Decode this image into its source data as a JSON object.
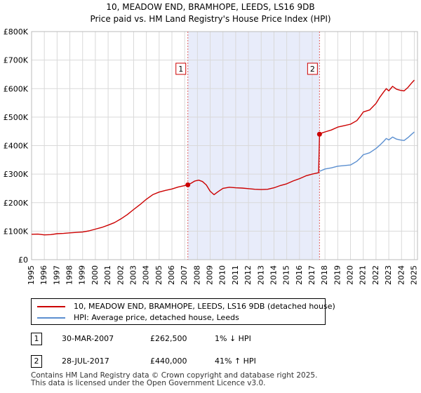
{
  "chart_data": {
    "type": "line",
    "title": "10, MEADOW END, BRAMHOPE, LEEDS, LS16 9DB",
    "subtitle": "Price paid vs. HM Land Registry's House Price Index (HPI)",
    "xlim": [
      1995,
      2025.25
    ],
    "ylim": [
      0,
      800000
    ],
    "x_ticks": [
      1995,
      1996,
      1997,
      1998,
      1999,
      2000,
      2001,
      2002,
      2003,
      2004,
      2005,
      2006,
      2007,
      2008,
      2009,
      2010,
      2011,
      2012,
      2013,
      2014,
      2015,
      2016,
      2017,
      2018,
      2019,
      2020,
      2021,
      2022,
      2023,
      2024,
      2025
    ],
    "y_ticks": [
      {
        "value": 0,
        "label": "£0"
      },
      {
        "value": 100000,
        "label": "£100K"
      },
      {
        "value": 200000,
        "label": "£200K"
      },
      {
        "value": 300000,
        "label": "£300K"
      },
      {
        "value": 400000,
        "label": "£400K"
      },
      {
        "value": 500000,
        "label": "£500K"
      },
      {
        "value": 600000,
        "label": "£600K"
      },
      {
        "value": 700000,
        "label": "£700K"
      },
      {
        "value": 800000,
        "label": "£800K"
      }
    ],
    "shaded_range": [
      2007.25,
      2017.57
    ],
    "series": [
      {
        "name": "10, MEADOW END, BRAMHOPE, LEEDS, LS16 9DB (detached house)",
        "color": "#cc0000",
        "points": [
          [
            1995.0,
            89000
          ],
          [
            1995.5,
            89500
          ],
          [
            1996.0,
            87000
          ],
          [
            1996.5,
            88000
          ],
          [
            1997.0,
            91000
          ],
          [
            1997.5,
            92000
          ],
          [
            1998.0,
            94000
          ],
          [
            1998.5,
            95500
          ],
          [
            1999.0,
            97000
          ],
          [
            1999.5,
            101000
          ],
          [
            2000.0,
            107000
          ],
          [
            2000.5,
            113000
          ],
          [
            2001.0,
            121000
          ],
          [
            2001.5,
            130000
          ],
          [
            2002.0,
            143000
          ],
          [
            2002.5,
            158000
          ],
          [
            2003.0,
            176000
          ],
          [
            2003.5,
            193000
          ],
          [
            2004.0,
            212000
          ],
          [
            2004.5,
            228000
          ],
          [
            2005.0,
            237000
          ],
          [
            2005.5,
            243000
          ],
          [
            2006.0,
            248000
          ],
          [
            2006.5,
            255000
          ],
          [
            2007.0,
            260000
          ],
          [
            2007.25,
            262500
          ],
          [
            2007.5,
            268000
          ],
          [
            2007.8,
            276000
          ],
          [
            2008.1,
            279000
          ],
          [
            2008.4,
            274000
          ],
          [
            2008.7,
            262000
          ],
          [
            2009.0,
            240000
          ],
          [
            2009.3,
            228000
          ],
          [
            2009.6,
            238000
          ],
          [
            2010.0,
            250000
          ],
          [
            2010.5,
            254000
          ],
          [
            2011.0,
            252000
          ],
          [
            2011.5,
            251000
          ],
          [
            2012.0,
            249000
          ],
          [
            2012.5,
            247000
          ],
          [
            2013.0,
            246000
          ],
          [
            2013.5,
            247000
          ],
          [
            2014.0,
            252000
          ],
          [
            2014.5,
            260000
          ],
          [
            2015.0,
            266000
          ],
          [
            2015.5,
            276000
          ],
          [
            2016.0,
            284000
          ],
          [
            2016.5,
            294000
          ],
          [
            2017.0,
            300000
          ],
          [
            2017.5,
            305000
          ],
          [
            2017.57,
            440000
          ],
          [
            2017.8,
            445000
          ],
          [
            2018.0,
            448000
          ],
          [
            2018.5,
            455000
          ],
          [
            2019.0,
            465000
          ],
          [
            2019.5,
            470000
          ],
          [
            2020.0,
            475000
          ],
          [
            2020.5,
            488000
          ],
          [
            2020.8,
            505000
          ],
          [
            2021.0,
            518000
          ],
          [
            2021.5,
            525000
          ],
          [
            2022.0,
            548000
          ],
          [
            2022.3,
            570000
          ],
          [
            2022.6,
            588000
          ],
          [
            2022.8,
            600000
          ],
          [
            2023.0,
            592000
          ],
          [
            2023.3,
            608000
          ],
          [
            2023.6,
            598000
          ],
          [
            2023.9,
            594000
          ],
          [
            2024.2,
            592000
          ],
          [
            2024.5,
            604000
          ],
          [
            2024.8,
            620000
          ],
          [
            2025.0,
            630000
          ]
        ]
      },
      {
        "name": "HPI: Average price, detached house, Leeds",
        "color": "#5b8fd0",
        "points": [
          [
            2017.57,
            310000
          ],
          [
            2018.0,
            318000
          ],
          [
            2018.5,
            322000
          ],
          [
            2019.0,
            328000
          ],
          [
            2019.5,
            330000
          ],
          [
            2020.0,
            332000
          ],
          [
            2020.5,
            345000
          ],
          [
            2020.8,
            358000
          ],
          [
            2021.0,
            368000
          ],
          [
            2021.5,
            375000
          ],
          [
            2022.0,
            390000
          ],
          [
            2022.3,
            402000
          ],
          [
            2022.6,
            415000
          ],
          [
            2022.8,
            425000
          ],
          [
            2023.0,
            420000
          ],
          [
            2023.3,
            430000
          ],
          [
            2023.6,
            423000
          ],
          [
            2023.9,
            420000
          ],
          [
            2024.2,
            418000
          ],
          [
            2024.5,
            428000
          ],
          [
            2024.8,
            440000
          ],
          [
            2025.0,
            448000
          ]
        ]
      }
    ],
    "sales": [
      {
        "label": "1",
        "x": 2007.25,
        "y": 262500
      },
      {
        "label": "2",
        "x": 2017.57,
        "y": 440000
      }
    ]
  },
  "legend": [
    {
      "label": "10, MEADOW END, BRAMHOPE, LEEDS, LS16 9DB (detached house)",
      "color": "#cc0000"
    },
    {
      "label": "HPI: Average price, detached house, Leeds",
      "color": "#5b8fd0"
    }
  ],
  "sales_table": [
    {
      "num": "1",
      "date": "30-MAR-2007",
      "price": "£262,500",
      "hpi": "1% ↓ HPI"
    },
    {
      "num": "2",
      "date": "28-JUL-2017",
      "price": "£440,000",
      "hpi": "41% ↑ HPI"
    }
  ],
  "footer": {
    "line1": "Contains HM Land Registry data © Crown copyright and database right 2025.",
    "line2": "This data is licensed under the Open Government Licence v3.0."
  }
}
